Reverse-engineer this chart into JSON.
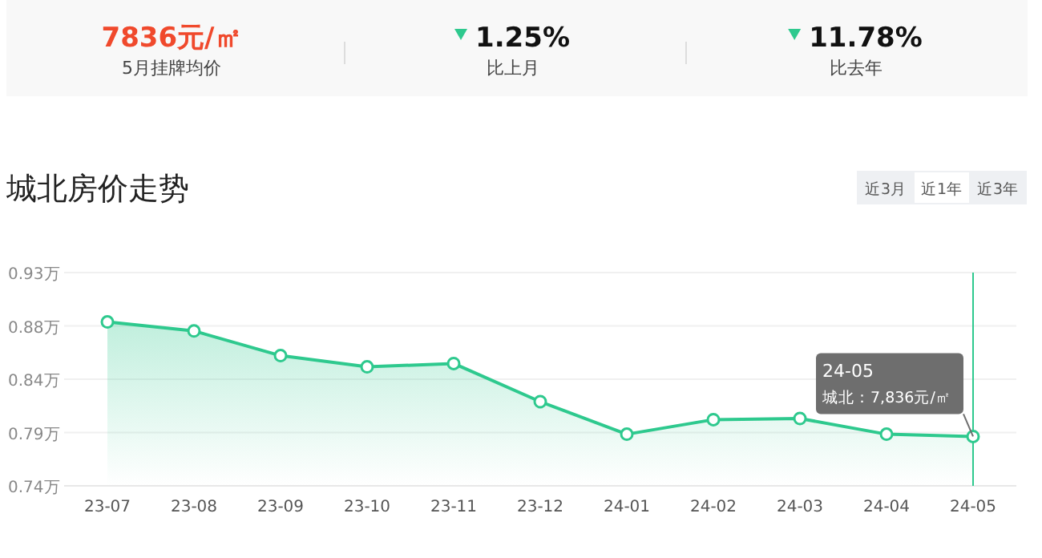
{
  "chart_data": [
    {
      "type": "other",
      "annotations": [
        "7836元/㎡",
        "5月挂牌均价",
        "1.25%",
        "比上月",
        "11.78%",
        "比去年"
      ]
    },
    {
      "type": "area",
      "title": "城北房价走势",
      "categories": [
        "23-07",
        "23-08",
        "23-09",
        "23-10",
        "23-11",
        "23-12",
        "24-01",
        "24-02",
        "24-03",
        "24-04",
        "24-05"
      ],
      "series": [
        {
          "color": "#2ec98e",
          "values": [
            0.886,
            0.878,
            0.856,
            0.846,
            0.849,
            0.815,
            0.786,
            0.799,
            0.8,
            0.786,
            0.784
          ]
        }
      ],
      "ylim": [
        0.74,
        0.93
      ],
      "yticks": [
        {
          "value": 0.74,
          "label": "0.74万"
        },
        {
          "value": 0.7875,
          "label": "0.79万"
        },
        {
          "value": 0.835,
          "label": "0.84万"
        },
        {
          "value": 0.8825,
          "label": "0.88万"
        },
        {
          "value": 0.93,
          "label": "0.93万"
        }
      ],
      "grid": "y",
      "marker": "circle",
      "line_style": "solid",
      "ref_lines": [
        {
          "axis": "x",
          "value": "24-05",
          "color": "#2ec98e"
        }
      ],
      "annotations": [
        "近3月",
        "近1年",
        "近3年",
        {
          "text": "24-05\n城北：7,836元/㎡",
          "x": "24-05",
          "y": 0.784
        }
      ]
    }
  ]
}
